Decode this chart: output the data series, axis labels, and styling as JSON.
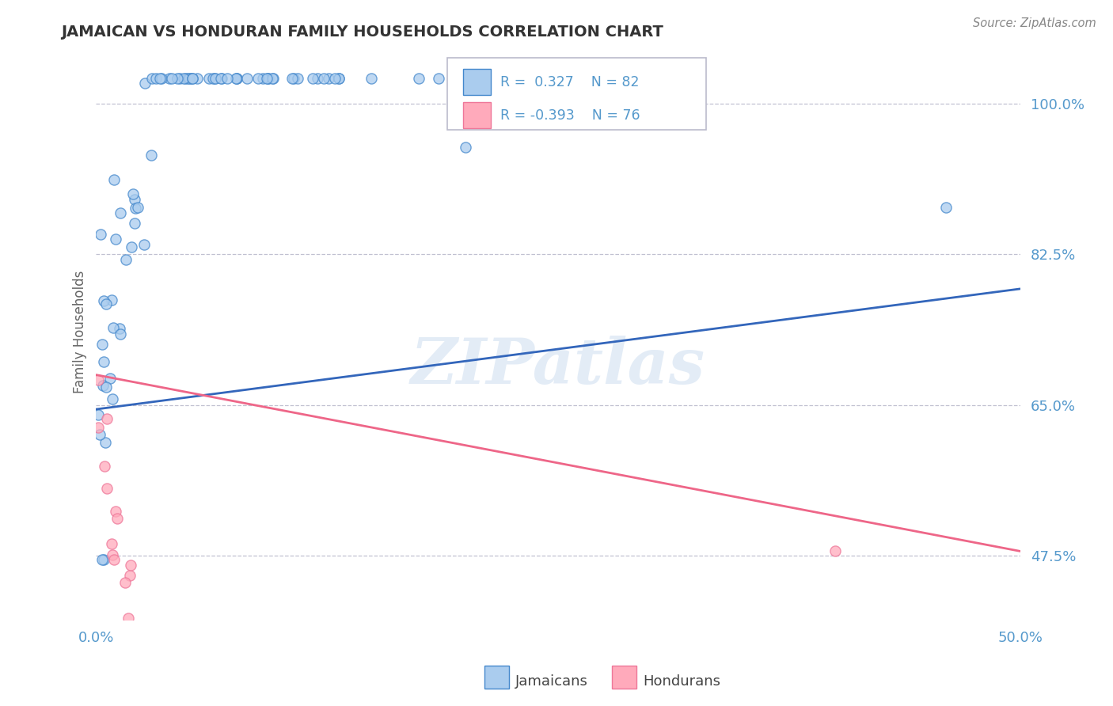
{
  "title": "JAMAICAN VS HONDURAN FAMILY HOUSEHOLDS CORRELATION CHART",
  "source": "Source: ZipAtlas.com",
  "ylabel": "Family Households",
  "x_min": 0.0,
  "x_max": 50.0,
  "y_min": 40.0,
  "y_max": 107.0,
  "yticks": [
    47.5,
    65.0,
    82.5,
    100.0
  ],
  "xtick_vals": [
    0.0,
    50.0
  ],
  "xtick_labels": [
    "0.0%",
    "50.0%"
  ],
  "ytick_labels": [
    "47.5%",
    "65.0%",
    "82.5%",
    "100.0%"
  ],
  "jamaicans_R": 0.327,
  "jamaicans_N": 82,
  "hondurans_R": -0.393,
  "hondurans_N": 76,
  "color_blue_fill": "#AACCEE",
  "color_blue_edge": "#4488CC",
  "color_blue_line": "#3366BB",
  "color_pink_fill": "#FFAABB",
  "color_pink_edge": "#EE7799",
  "color_pink_line": "#EE6688",
  "color_axis_text": "#5599CC",
  "color_title": "#333333",
  "watermark": "ZIPatlas",
  "background": "#FFFFFF",
  "grid_color": "#BBBBCC",
  "legend_label_blue": "Jamaicans",
  "legend_label_pink": "Hondurans",
  "blue_line_y0": 64.5,
  "blue_line_y1": 78.5,
  "pink_line_y0": 68.5,
  "pink_line_y1": 48.0
}
